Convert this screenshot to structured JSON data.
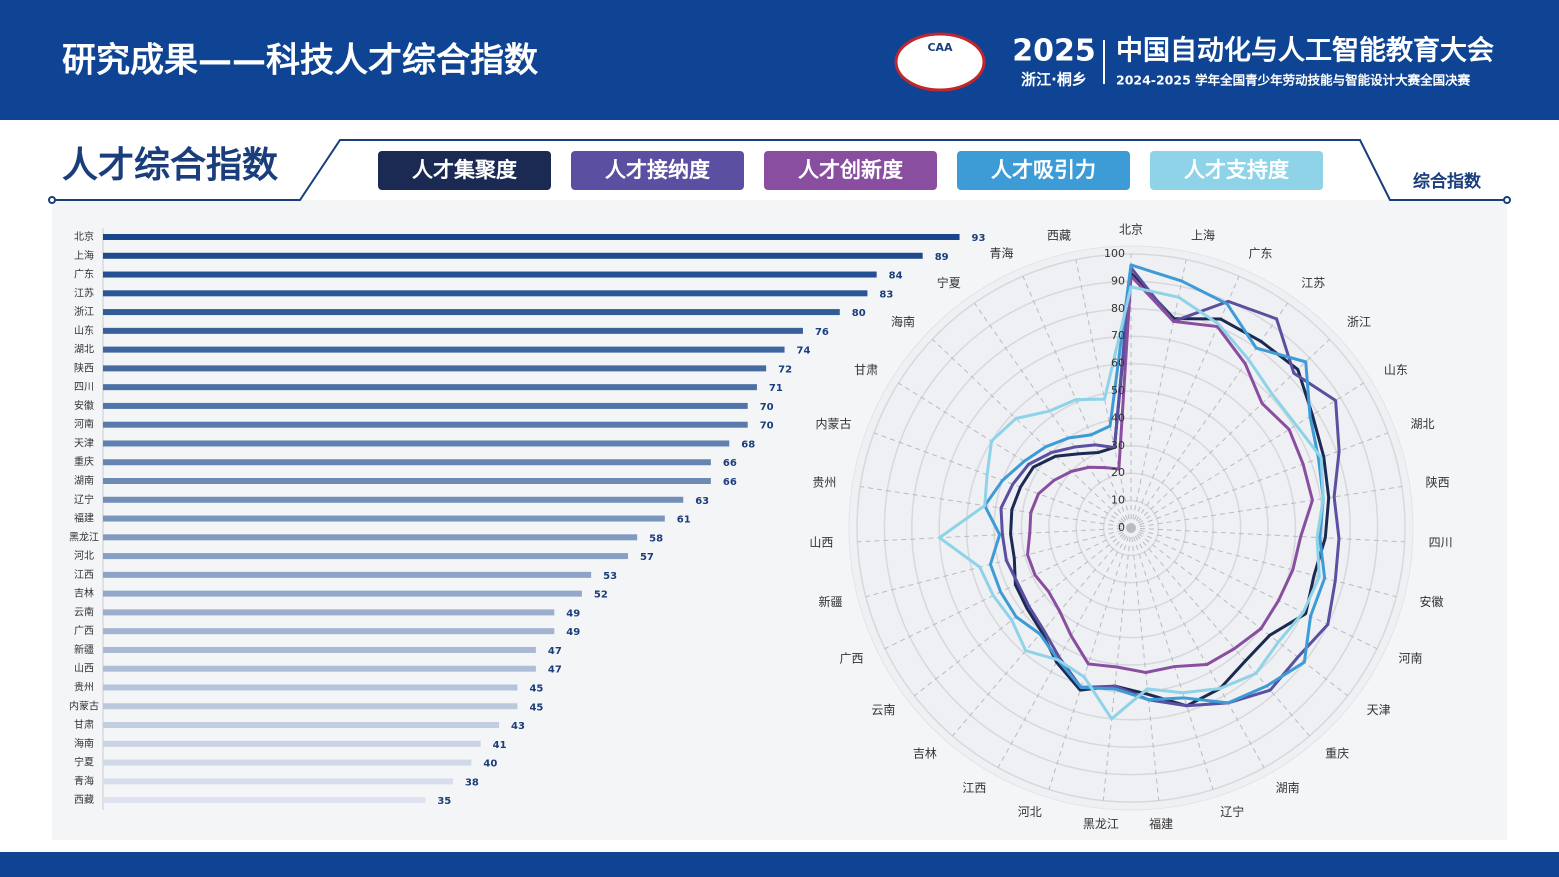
{
  "header": {
    "title": "研究成果——科技人才综合指数",
    "logo_text": "CAA",
    "brand_year": "2025",
    "brand_location": "浙江·桐乡",
    "brand_name": "中国自动化与人工智能教育大会",
    "brand_subtitle": "2024-2025 学年全国青少年劳动技能与智能设计大赛全国决赛"
  },
  "section": {
    "title": "人才综合指数",
    "tag": "综合指数"
  },
  "chart_data": [
    {
      "type": "bar",
      "orientation": "horizontal",
      "categories": [
        "北京",
        "上海",
        "广东",
        "江苏",
        "浙江",
        "山东",
        "湖北",
        "陕西",
        "四川",
        "安徽",
        "河南",
        "天津",
        "重庆",
        "湖南",
        "辽宁",
        "福建",
        "黑龙江",
        "河北",
        "江西",
        "吉林",
        "云南",
        "广西",
        "新疆",
        "山西",
        "贵州",
        "内蒙古",
        "甘肃",
        "海南",
        "宁夏",
        "青海",
        "西藏"
      ],
      "values": [
        93,
        89,
        84,
        83,
        80,
        76,
        74,
        72,
        71,
        70,
        70,
        68,
        66,
        66,
        63,
        61,
        58,
        57,
        53,
        52,
        49,
        49,
        47,
        47,
        45,
        45,
        43,
        41,
        40,
        38,
        35
      ],
      "xlim": [
        0,
        100
      ],
      "color_range": [
        "#17468a",
        "#dde3ee"
      ]
    },
    {
      "type": "radar",
      "categories": [
        "北京",
        "上海",
        "广东",
        "江苏",
        "浙江",
        "山东",
        "湖北",
        "陕西",
        "四川",
        "安徽",
        "河南",
        "天津",
        "重庆",
        "湖南",
        "辽宁",
        "福建",
        "黑龙江",
        "河北",
        "江西",
        "吉林",
        "云南",
        "广西",
        "新疆",
        "山西",
        "贵州",
        "内蒙古",
        "甘肃",
        "海南",
        "宁夏",
        "青海",
        "西藏"
      ],
      "rlim": [
        0,
        100
      ],
      "rticks": [
        0,
        10,
        20,
        30,
        40,
        50,
        60,
        70,
        80,
        90,
        100
      ],
      "series": [
        {
          "name": "人才集聚度",
          "color": "#1b2a52",
          "values": [
            93,
            78,
            83,
            83,
            84,
            78,
            75,
            73,
            71,
            69,
            71,
            64,
            64,
            67,
            68,
            61,
            58,
            62,
            56,
            50,
            48,
            47,
            44,
            44,
            44,
            43,
            42,
            38,
            33,
            30,
            30
          ]
        },
        {
          "name": "人才接纳度",
          "color": "#5a4fa0",
          "values": [
            95,
            77,
            90,
            93,
            82,
            88,
            81,
            75,
            76,
            77,
            80,
            77,
            78,
            73,
            68,
            63,
            58,
            61,
            54,
            49,
            47,
            46,
            47,
            47,
            48,
            46,
            44,
            40,
            36,
            33,
            30
          ]
        },
        {
          "name": "人才创新度",
          "color": "#8a4ea0",
          "values": [
            92,
            77,
            80,
            73,
            66,
            68,
            67,
            67,
            62,
            61,
            60,
            60,
            58,
            57,
            53,
            53,
            51,
            52,
            45,
            40,
            38,
            39,
            39,
            37,
            37,
            36,
            33,
            30,
            27,
            24,
            22
          ]
        },
        {
          "name": "人才吸引力",
          "color": "#3d9bd6",
          "values": [
            96,
            92,
            89,
            80,
            88,
            77,
            73,
            71,
            69,
            73,
            73,
            80,
            76,
            73,
            65,
            63,
            59,
            61,
            55,
            51,
            53,
            53,
            53,
            48,
            54,
            50,
            46,
            43,
            40,
            37,
            38
          ]
        },
        {
          "name": "人才支持度",
          "color": "#8fd3e8",
          "values": [
            88,
            86,
            81,
            75,
            71,
            71,
            74,
            71,
            68,
            71,
            70,
            68,
            70,
            67,
            63,
            59,
            70,
            57,
            55,
            59,
            55,
            56,
            57,
            70,
            54,
            56,
            60,
            58,
            52,
            51,
            48
          ]
        }
      ]
    }
  ]
}
